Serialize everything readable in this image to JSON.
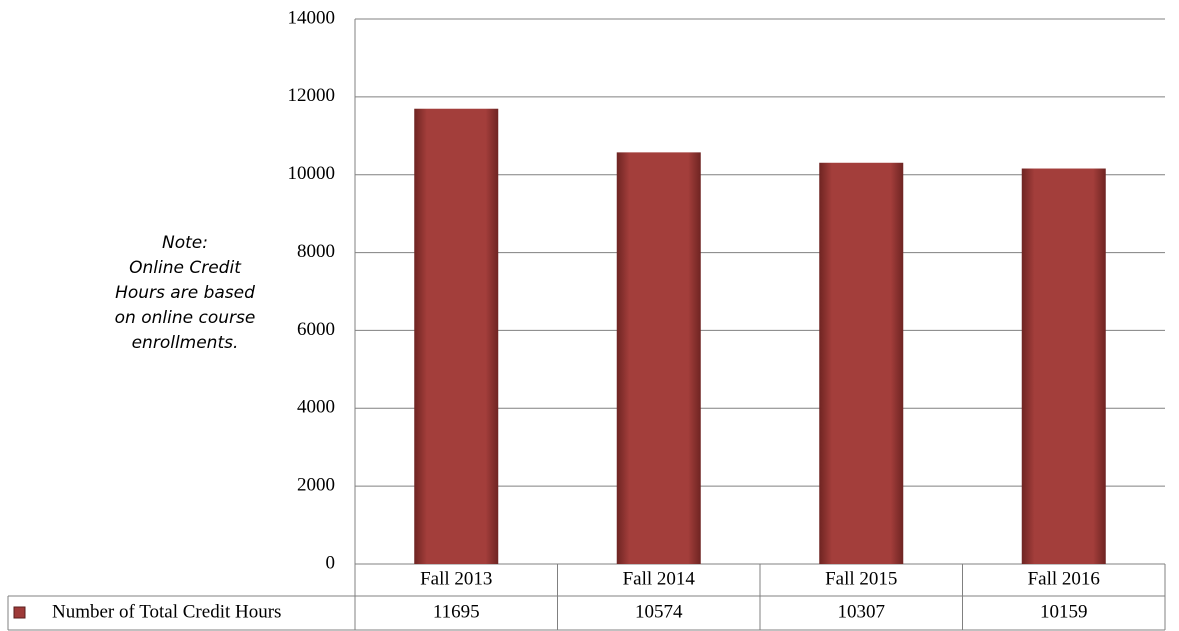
{
  "chart_data": {
    "type": "bar",
    "note": [
      "Note:",
      "Online Credit",
      "Hours are based",
      "on online course",
      "enrollments."
    ],
    "categories": [
      "Fall 2013",
      "Fall 2014",
      "Fall 2015",
      "Fall 2016"
    ],
    "series": [
      {
        "name": "Number of Total Credit Hours",
        "color": "#9e3a38",
        "values": [
          11695,
          10574,
          10307,
          10159
        ]
      }
    ],
    "ylim": [
      0,
      14000
    ],
    "yticks": [
      0,
      2000,
      4000,
      6000,
      8000,
      10000,
      12000,
      14000
    ],
    "grid": true
  }
}
